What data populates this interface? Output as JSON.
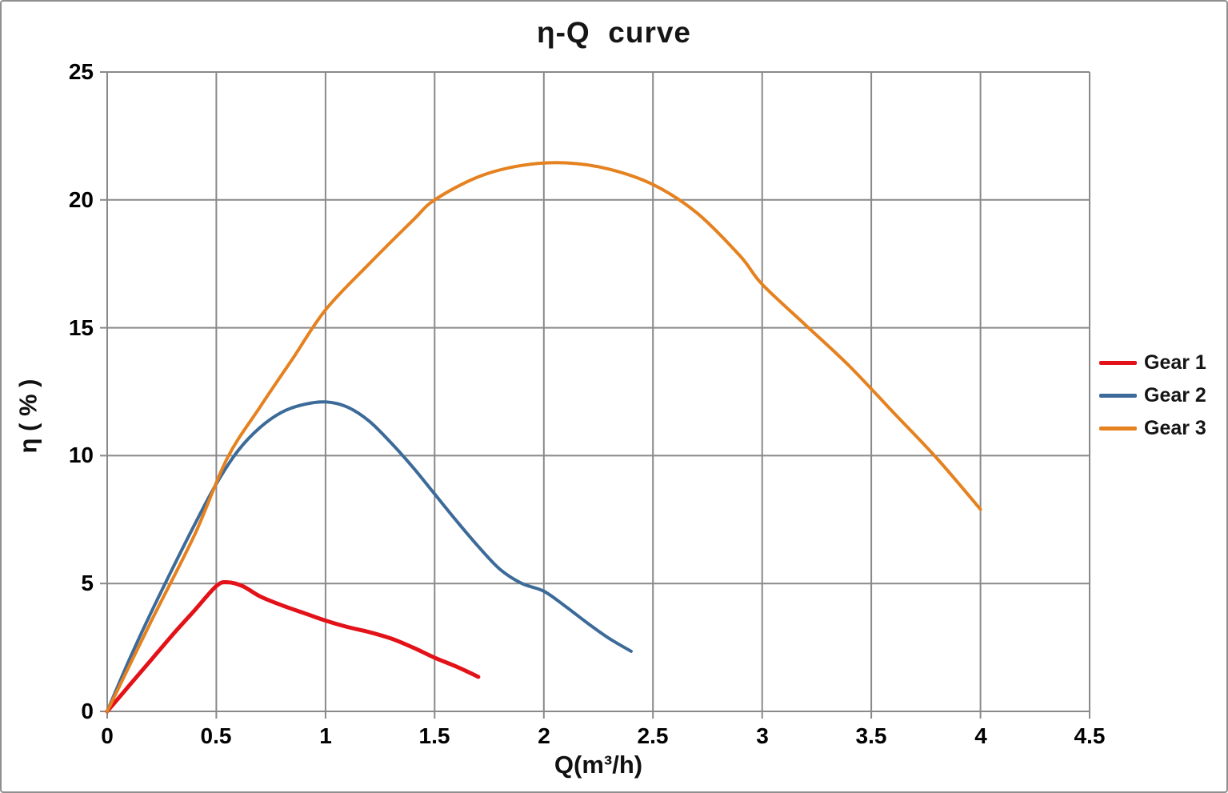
{
  "window": {
    "background": "#ffffff",
    "border_color": "#8f8f8f"
  },
  "chart_data": {
    "type": "line",
    "title": "η-Q  curve",
    "xlabel": "Q(m³/h)",
    "ylabel": "η ( % )",
    "xlim": [
      0,
      4.5
    ],
    "ylim": [
      0,
      25
    ],
    "x_ticks": [
      0,
      0.5,
      1,
      1.5,
      2,
      2.5,
      3,
      3.5,
      4,
      4.5
    ],
    "x_tick_labels": [
      "0",
      "0.5",
      "1",
      "1.5",
      "2",
      "2.5",
      "3",
      "3.5",
      "4",
      "4.5"
    ],
    "y_ticks": [
      0,
      5,
      10,
      15,
      20,
      25
    ],
    "y_tick_labels": [
      "0",
      "5",
      "10",
      "15",
      "20",
      "25"
    ],
    "grid": true,
    "gridline_color": "#898989",
    "text_color": "#000000",
    "legend_position": "right",
    "series": [
      {
        "name": "Gear 1",
        "color": "#e31219",
        "line_width": 5,
        "x": [
          0,
          0.1,
          0.2,
          0.3,
          0.4,
          0.5,
          0.55,
          0.62,
          0.7,
          0.8,
          0.9,
          1.0,
          1.1,
          1.2,
          1.3,
          1.4,
          1.5,
          1.6,
          1.7
        ],
        "y": [
          0,
          1.0,
          2.0,
          3.0,
          3.95,
          4.9,
          5.05,
          4.9,
          4.5,
          4.15,
          3.85,
          3.55,
          3.3,
          3.1,
          2.85,
          2.5,
          2.1,
          1.75,
          1.35
        ]
      },
      {
        "name": "Gear 2",
        "color": "#3c6a99",
        "line_width": 4,
        "x": [
          0,
          0.1,
          0.2,
          0.3,
          0.4,
          0.5,
          0.6,
          0.7,
          0.8,
          0.9,
          1.0,
          1.1,
          1.2,
          1.3,
          1.4,
          1.5,
          1.6,
          1.7,
          1.8,
          1.9,
          2.0,
          2.1,
          2.2,
          2.3,
          2.4
        ],
        "y": [
          0,
          2.0,
          3.85,
          5.6,
          7.3,
          8.9,
          10.2,
          11.1,
          11.7,
          12.0,
          12.1,
          11.9,
          11.35,
          10.5,
          9.55,
          8.5,
          7.45,
          6.45,
          5.55,
          5.0,
          4.7,
          4.1,
          3.45,
          2.85,
          2.35
        ]
      },
      {
        "name": "Gear 3",
        "color": "#e5811f",
        "line_width": 4,
        "x": [
          0,
          0.2,
          0.4,
          0.55,
          0.7,
          0.85,
          1.0,
          1.2,
          1.4,
          1.5,
          1.7,
          1.9,
          2.1,
          2.3,
          2.5,
          2.7,
          2.9,
          3.0,
          3.2,
          3.4,
          3.6,
          3.8,
          4.0
        ],
        "y": [
          0,
          3.5,
          6.9,
          9.9,
          11.9,
          13.8,
          15.7,
          17.5,
          19.2,
          20.0,
          20.9,
          21.35,
          21.45,
          21.2,
          20.6,
          19.5,
          17.8,
          16.7,
          15.1,
          13.5,
          11.7,
          9.9,
          7.9
        ]
      }
    ]
  }
}
